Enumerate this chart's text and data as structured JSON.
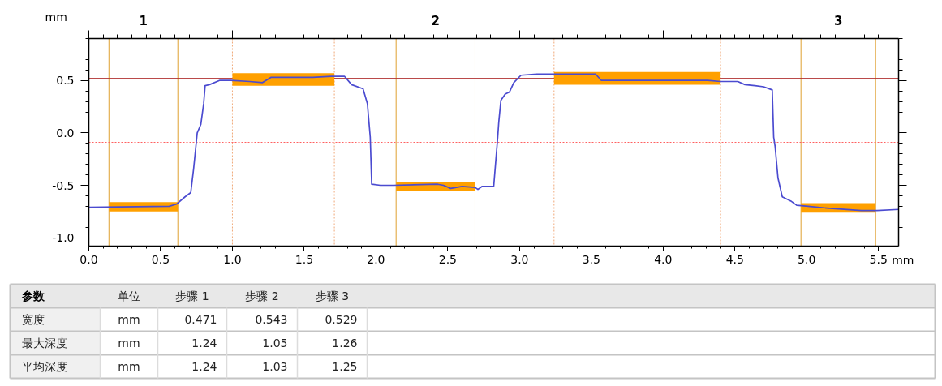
{
  "chart_data": [
    {
      "type": "line",
      "xlabel": "mm",
      "ylabel": "mm",
      "xlim": [
        0,
        5.64
      ],
      "ylim": [
        -1.08,
        0.9
      ],
      "xticks": [
        {
          "value": 0,
          "label": "0.0"
        },
        {
          "value": 0.5,
          "label": "0.5"
        },
        {
          "value": 1,
          "label": "1.0"
        },
        {
          "value": 1.5,
          "label": "1.5"
        },
        {
          "value": 2,
          "label": "2.0"
        },
        {
          "value": 2.5,
          "label": "2.5"
        },
        {
          "value": 3,
          "label": "3.0"
        },
        {
          "value": 3.5,
          "label": "3.5"
        },
        {
          "value": 4,
          "label": "4.0"
        },
        {
          "value": 4.5,
          "label": "4.5"
        },
        {
          "value": 5,
          "label": "5.0"
        },
        {
          "value": 5.5,
          "label": "5.5"
        }
      ],
      "yticks": [
        {
          "value": -1,
          "label": "-1.0"
        },
        {
          "value": -0.5,
          "label": "-0.5"
        },
        {
          "value": 0,
          "label": "0.0"
        },
        {
          "value": 0.5,
          "label": "0.5"
        }
      ],
      "series": [
        {
          "type": "line",
          "color": "#ffa000",
          "x": [
            0.14,
            0.62
          ],
          "values": [
            null,
            null
          ],
          "lower": [
            -0.75,
            -0.75
          ],
          "upper": [
            -0.66,
            -0.66
          ]
        },
        {
          "type": "line",
          "color": "#ffa000",
          "x": [
            1.0,
            1.71
          ],
          "values": [
            null,
            null
          ],
          "lower": [
            0.45,
            0.45
          ],
          "upper": [
            0.57,
            0.57
          ]
        },
        {
          "type": "line",
          "color": "#ffa000",
          "x": [
            2.14,
            2.69
          ],
          "values": [
            null,
            null
          ],
          "lower": [
            -0.55,
            -0.55
          ],
          "upper": [
            -0.47,
            -0.47
          ]
        },
        {
          "type": "line",
          "color": "#ffa000",
          "x": [
            3.24,
            4.4
          ],
          "values": [
            null,
            null
          ],
          "lower": [
            0.46,
            0.46
          ],
          "upper": [
            0.58,
            0.58
          ]
        },
        {
          "type": "line",
          "color": "#ffa000",
          "x": [
            4.96,
            5.48
          ],
          "values": [
            null,
            null
          ],
          "lower": [
            -0.76,
            -0.76
          ],
          "upper": [
            -0.67,
            -0.67
          ]
        },
        {
          "type": "line",
          "color": "#4b4bd0",
          "x": [
            0,
            0.56,
            0.61,
            0.67,
            0.71,
            0.73,
            0.755,
            0.78,
            0.8,
            0.81,
            0.84,
            0.91,
            0.99,
            1.12,
            1.21,
            1.27,
            1.56,
            1.69,
            1.78,
            1.83,
            1.91,
            1.94,
            1.96,
            1.97,
            2.03,
            2.12,
            2.43,
            2.47,
            2.52,
            2.6,
            2.69,
            2.71,
            2.74,
            2.82,
            2.83,
            2.848,
            2.855,
            2.87,
            2.9,
            2.93,
            2.96,
            3.01,
            3.12,
            3.25,
            3.53,
            3.57,
            4.03,
            4.31,
            4.4,
            4.52,
            4.57,
            4.64,
            4.7,
            4.76,
            4.77,
            4.78,
            4.8,
            4.83,
            4.89,
            4.93,
            5.01,
            5.16,
            5.38,
            5.49,
            5.64
          ],
          "values": [
            -0.71,
            -0.7,
            -0.68,
            -0.61,
            -0.57,
            -0.34,
            0.0,
            0.08,
            0.28,
            0.45,
            0.46,
            0.5,
            0.5,
            0.49,
            0.48,
            0.53,
            0.53,
            0.54,
            0.54,
            0.46,
            0.42,
            0.28,
            -0.04,
            -0.49,
            -0.5,
            -0.5,
            -0.49,
            -0.5,
            -0.53,
            -0.51,
            -0.52,
            -0.54,
            -0.51,
            -0.51,
            -0.34,
            -0.04,
            0.1,
            0.31,
            0.37,
            0.39,
            0.48,
            0.55,
            0.56,
            0.56,
            0.56,
            0.5,
            0.5,
            0.5,
            0.49,
            0.49,
            0.46,
            0.45,
            0.44,
            0.41,
            -0.04,
            -0.13,
            -0.43,
            -0.61,
            -0.65,
            -0.69,
            -0.7,
            -0.72,
            -0.74,
            -0.74,
            -0.73
          ]
        }
      ],
      "ref_lines": [
        {
          "axis": "x",
          "value": 0.14,
          "color": "#dfa030",
          "line_style": "solid"
        },
        {
          "axis": "x",
          "value": 0.62,
          "color": "#dfa030",
          "line_style": "solid"
        },
        {
          "axis": "x",
          "value": 1.0,
          "color": "#f0a878",
          "line_style": "dotted"
        },
        {
          "axis": "x",
          "value": 1.71,
          "color": "#f0a878",
          "line_style": "dotted"
        },
        {
          "axis": "x",
          "value": 2.14,
          "color": "#dfa030",
          "line_style": "solid"
        },
        {
          "axis": "x",
          "value": 2.69,
          "color": "#dfa030",
          "line_style": "solid"
        },
        {
          "axis": "x",
          "value": 3.24,
          "color": "#f0a878",
          "line_style": "dotted"
        },
        {
          "axis": "x",
          "value": 4.4,
          "color": "#f0a878",
          "line_style": "dotted"
        },
        {
          "axis": "x",
          "value": 4.96,
          "color": "#dfa030",
          "line_style": "solid"
        },
        {
          "axis": "x",
          "value": 5.48,
          "color": "#dfa030",
          "line_style": "solid"
        },
        {
          "axis": "y",
          "value": 0.52,
          "color": "#b03030",
          "line_style": "solid"
        },
        {
          "axis": "y",
          "value": -0.09,
          "color": "#ff6060",
          "line_style": "dotted"
        }
      ],
      "annotations": [
        "1",
        "2",
        "3"
      ]
    },
    {
      "type": "other",
      "ylabel": "参数",
      "categories": [
        "单位",
        "步骤 1",
        "步骤 2",
        "步骤 3"
      ],
      "y_categories": [
        "宽度",
        "最大深度",
        "平均深度"
      ],
      "cell_labels": [
        [
          "mm",
          "0.471",
          "0.543",
          "0.529"
        ],
        [
          "mm",
          "1.24",
          "1.05",
          "1.26"
        ],
        [
          "mm",
          "1.24",
          "1.03",
          "1.25"
        ]
      ]
    }
  ]
}
